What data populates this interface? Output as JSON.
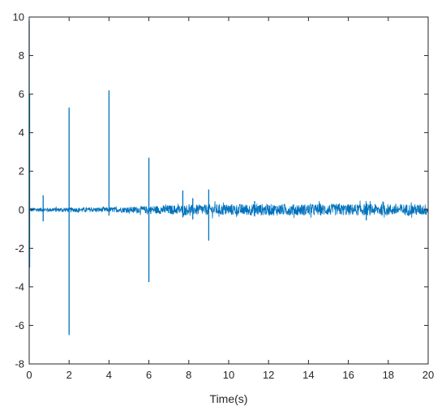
{
  "chart_data": {
    "type": "line",
    "title": "",
    "xlabel": "Time(s)",
    "ylabel": "",
    "xlim": [
      0,
      20
    ],
    "ylim": [
      -8,
      10
    ],
    "x_ticks": [
      0,
      2,
      4,
      6,
      8,
      10,
      12,
      14,
      16,
      18,
      20
    ],
    "y_ticks": [
      -8,
      -6,
      -4,
      -2,
      0,
      2,
      4,
      6,
      8,
      10
    ],
    "x_tick_labels": [
      "0",
      "2",
      "4",
      "6",
      "8",
      "10",
      "12",
      "14",
      "16",
      "18",
      "20"
    ],
    "y_tick_labels": [
      "-8",
      "-6",
      "-4",
      "-2",
      "0",
      "2",
      "4",
      "6",
      "8",
      "10"
    ],
    "grid": false,
    "box": true,
    "line_color": "#0072BD",
    "series": [
      {
        "noise_envelope": {
          "x": [
            0,
            0.5,
            1,
            2,
            3,
            4,
            5,
            6,
            7,
            8,
            9,
            10,
            12,
            14,
            16,
            18,
            20
          ],
          "amplitude": [
            0.12,
            0.1,
            0.1,
            0.12,
            0.12,
            0.13,
            0.15,
            0.2,
            0.24,
            0.26,
            0.28,
            0.3,
            0.3,
            0.3,
            0.3,
            0.3,
            0.3
          ]
        },
        "spikes": [
          {
            "x": 0.0,
            "max": 9.8,
            "min": -4.0
          },
          {
            "x": 0.02,
            "max": 6.0,
            "min": -3.0
          },
          {
            "x": 0.7,
            "max": 0.75,
            "min": -0.6
          },
          {
            "x": 2.0,
            "max": 5.3,
            "min": -6.5
          },
          {
            "x": 4.0,
            "max": 6.2,
            "min": -0.3
          },
          {
            "x": 6.0,
            "max": 2.7,
            "min": -3.75
          },
          {
            "x": 7.7,
            "max": 1.0,
            "min": -0.4
          },
          {
            "x": 8.2,
            "max": 0.6,
            "min": -0.5
          },
          {
            "x": 9.0,
            "max": 1.05,
            "min": -1.6
          },
          {
            "x": 11.3,
            "max": 0.45,
            "min": -0.35
          },
          {
            "x": 16.9,
            "max": 0.35,
            "min": -0.55
          }
        ]
      }
    ]
  }
}
